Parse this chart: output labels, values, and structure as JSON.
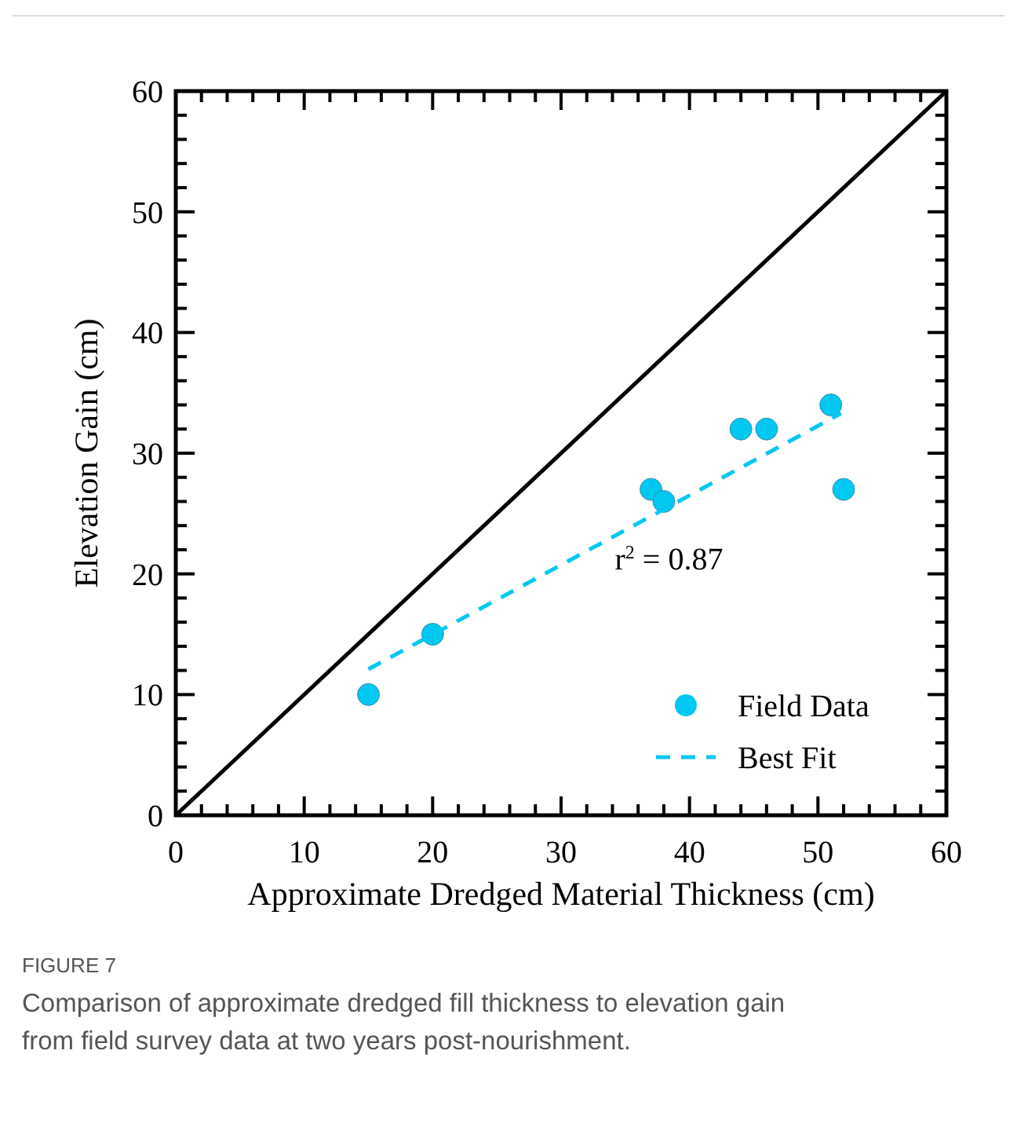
{
  "chart_data": {
    "type": "scatter",
    "xlabel": "Approximate Dredged Material Thickness (cm)",
    "ylabel": "Elevation Gain (cm)",
    "xlim": [
      0,
      60
    ],
    "ylim": [
      0,
      60
    ],
    "xticks": [
      0,
      {
        "value": 2,
        "label": null
      },
      {
        "value": 4,
        "label": null
      },
      {
        "value": 6,
        "label": null
      },
      {
        "value": 8,
        "label": null
      },
      10,
      {
        "value": 12,
        "label": null
      },
      {
        "value": 14,
        "label": null
      },
      {
        "value": 16,
        "label": null
      },
      {
        "value": 18,
        "label": null
      },
      20,
      {
        "value": 22,
        "label": null
      },
      {
        "value": 24,
        "label": null
      },
      {
        "value": 26,
        "label": null
      },
      {
        "value": 28,
        "label": null
      },
      30,
      {
        "value": 32,
        "label": null
      },
      {
        "value": 34,
        "label": null
      },
      {
        "value": 36,
        "label": null
      },
      {
        "value": 38,
        "label": null
      },
      40,
      {
        "value": 42,
        "label": null
      },
      {
        "value": 44,
        "label": null
      },
      {
        "value": 46,
        "label": null
      },
      {
        "value": 48,
        "label": null
      },
      50,
      {
        "value": 52,
        "label": null
      },
      {
        "value": 54,
        "label": null
      },
      {
        "value": 56,
        "label": null
      },
      {
        "value": 58,
        "label": null
      },
      60
    ],
    "yticks": [
      0,
      {
        "value": 2,
        "label": null
      },
      {
        "value": 4,
        "label": null
      },
      {
        "value": 6,
        "label": null
      },
      {
        "value": 8,
        "label": null
      },
      10,
      {
        "value": 12,
        "label": null
      },
      {
        "value": 14,
        "label": null
      },
      {
        "value": 16,
        "label": null
      },
      {
        "value": 18,
        "label": null
      },
      20,
      {
        "value": 22,
        "label": null
      },
      {
        "value": 24,
        "label": null
      },
      {
        "value": 26,
        "label": null
      },
      {
        "value": 28,
        "label": null
      },
      30,
      {
        "value": 32,
        "label": null
      },
      {
        "value": 34,
        "label": null
      },
      {
        "value": 36,
        "label": null
      },
      {
        "value": 38,
        "label": null
      },
      40,
      {
        "value": 42,
        "label": null
      },
      {
        "value": 44,
        "label": null
      },
      {
        "value": 46,
        "label": null
      },
      {
        "value": 48,
        "label": null
      },
      50,
      {
        "value": 52,
        "label": null
      },
      {
        "value": 54,
        "label": null
      },
      {
        "value": 56,
        "label": null
      },
      {
        "value": 58,
        "label": null
      },
      60
    ],
    "series": [
      {
        "type": "line",
        "color": "#000000",
        "x": [
          0,
          60
        ],
        "values": [
          0,
          60
        ],
        "line_style": "solid",
        "marker": "none"
      },
      {
        "name": "Field Data",
        "color": "#00c8f0",
        "x": [
          15,
          20,
          37,
          38,
          44,
          46,
          51,
          52
        ],
        "values": [
          10,
          15,
          27,
          26,
          32,
          32,
          34,
          27
        ],
        "marker": "circle"
      },
      {
        "name": "Best Fit",
        "type": "line",
        "color": "#00c8f0",
        "x": [
          15,
          51.8
        ],
        "values": [
          12.1,
          33.3
        ],
        "line_style": "dashed",
        "marker": "none"
      }
    ],
    "legend": "bottom right",
    "grid": false,
    "annotations": [
      "r$^{2}$ = 0.87",
      "FIGURE 7",
      "Comparison of approximate dredged fill thickness to elevation gain from field survey data at two years post-nourishment."
    ]
  }
}
